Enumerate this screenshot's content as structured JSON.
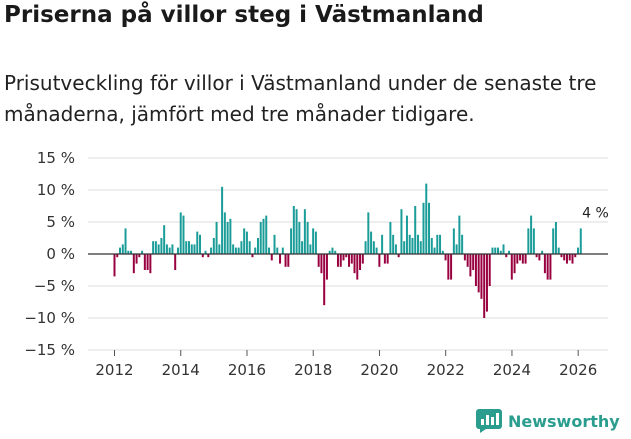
{
  "header": {
    "title": "Priserna på villor steg i Västmanland",
    "subtitle": "Prisutveckling för villor i Västmanland under de senaste tre månaderna, jämfört med tre månader tidigare."
  },
  "brand": {
    "name": "Newsworthy"
  },
  "colors": {
    "positive": "#1a9c98",
    "negative": "#99003f",
    "grid": "#dddddd",
    "zero": "#333333"
  },
  "chart_data": {
    "type": "bar",
    "title": "Priserna på villor steg i Västmanland",
    "xlabel": "",
    "ylabel": "",
    "ylim": [
      -15,
      15
    ],
    "xlim": [
      2011.2,
      2026.9
    ],
    "y_ticks": [
      15,
      10,
      5,
      0,
      -5,
      -10,
      -15
    ],
    "y_tick_labels": [
      "15 %",
      "10 %",
      "5 %",
      "0 %",
      "−5 %",
      "−10 %",
      "−15 %"
    ],
    "x_ticks": [
      2012,
      2014,
      2016,
      2018,
      2020,
      2022,
      2024,
      2026
    ],
    "x_tick_labels": [
      "2012",
      "2014",
      "2016",
      "2018",
      "2020",
      "2022",
      "2024",
      "2026"
    ],
    "annotation": {
      "text": "4 %",
      "x": 2026.25,
      "y": 4
    },
    "start": 2012.0,
    "step": 0.0833,
    "values": [
      -3.5,
      -0.5,
      1.0,
      1.5,
      4.0,
      0.5,
      0.5,
      -3.0,
      -1.5,
      -0.5,
      0.5,
      -2.5,
      -2.5,
      -3.0,
      2.0,
      2.0,
      1.5,
      2.5,
      4.5,
      1.5,
      1.0,
      1.5,
      -2.5,
      1.0,
      6.5,
      6.0,
      2.0,
      2.0,
      1.5,
      1.5,
      3.5,
      3.0,
      -0.5,
      0.5,
      -0.5,
      1.0,
      2.5,
      5.0,
      1.5,
      10.5,
      6.5,
      5.0,
      5.5,
      1.5,
      1.0,
      1.0,
      2.0,
      4.0,
      3.5,
      2.0,
      -0.5,
      1.0,
      2.5,
      5.0,
      5.5,
      6.0,
      1.0,
      -1.0,
      3.0,
      1.0,
      -1.5,
      1.0,
      -2.0,
      -2.0,
      4.0,
      7.5,
      7.0,
      5.0,
      2.0,
      7.0,
      5.0,
      1.5,
      4.0,
      3.5,
      -2.0,
      -3.0,
      -8.0,
      -4.0,
      0.5,
      1.0,
      0.5,
      -2.0,
      -2.0,
      -1.0,
      -0.5,
      -2.0,
      -1.5,
      -3.0,
      -4.0,
      -2.5,
      -1.5,
      2.0,
      6.5,
      3.5,
      2.0,
      1.0,
      -2.0,
      3.0,
      -1.5,
      -1.5,
      5.0,
      3.0,
      1.5,
      -0.5,
      7.0,
      2.0,
      6.0,
      3.0,
      2.5,
      7.5,
      3.0,
      2.0,
      8.0,
      11.0,
      8.0,
      2.5,
      1.0,
      3.0,
      3.0,
      0.5,
      -1.0,
      -4.0,
      -4.0,
      4.0,
      1.5,
      6.0,
      3.0,
      -1.0,
      -2.0,
      -3.5,
      -2.5,
      -5.0,
      -6.0,
      -7.0,
      -10.0,
      -9.0,
      -5.0,
      1.0,
      1.0,
      1.0,
      0.5,
      1.5,
      -0.5,
      0.5,
      -4.0,
      -3.0,
      -1.5,
      -1.0,
      -1.5,
      -1.5,
      4.0,
      6.0,
      4.0,
      -0.5,
      -1.0,
      0.5,
      -3.0,
      -4.0,
      -4.0,
      4.0,
      5.0,
      1.0,
      -0.5,
      -1.0,
      -1.5,
      -1.0,
      -1.5,
      -0.5,
      1.0,
      4.0
    ]
  }
}
